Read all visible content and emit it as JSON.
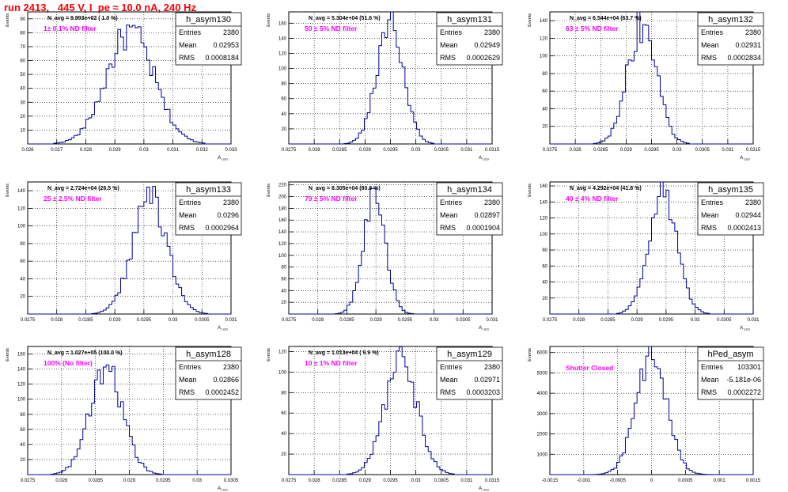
{
  "title": "run 2413,   445 V, I_pe ≈ 10.0 nA, 240 Hz",
  "colors": {
    "hist_line": "#000099",
    "annotation": "#ff00ff",
    "title": "#ff0000",
    "grid": "#000000"
  },
  "chart_data": [
    {
      "type": "bar",
      "name": "h_asym130",
      "ylabel": "Events",
      "xlabel": "A_LED",
      "navg": "N_avg = 9.993e+02 ( 1.0 %)",
      "note": "1± 0.1% ND filter",
      "stats": {
        "entries": "2380",
        "mean": "0.02953",
        "rms": "0.0008184"
      },
      "stat_labels": [
        "Entries",
        "Mean",
        "RMS"
      ],
      "xlim": [
        0.026,
        0.033
      ],
      "ylim": [
        0,
        95
      ],
      "xticks": [
        "0.026",
        "0.027",
        "0.028",
        "0.029",
        "0.03",
        "0.031",
        "0.032",
        "0.033"
      ],
      "yticks": [
        "10",
        "20",
        "30",
        "40",
        "50",
        "60",
        "70",
        "80",
        "90"
      ],
      "grid": true,
      "mean": 0.02953,
      "sigma": 0.000818,
      "peak": 80
    },
    {
      "type": "bar",
      "name": "h_asym131",
      "ylabel": "Events",
      "xlabel": "A_LED",
      "navg": "N_avg = 5.304e+04 (51.6 %)",
      "note": "50 ± 5% ND filter",
      "stats": {
        "entries": "2380",
        "mean": "0.02949",
        "rms": "0.0002629"
      },
      "stat_labels": [
        "Entries",
        "Mean",
        "RMS"
      ],
      "xlim": [
        0.0275,
        0.0315
      ],
      "ylim": [
        0,
        175
      ],
      "xticks": [
        "0.0275",
        "0.028",
        "0.0285",
        "0.029",
        "0.0295",
        "0.03",
        "0.0305",
        "0.031",
        "0.0315"
      ],
      "yticks": [
        "20",
        "40",
        "60",
        "80",
        "100",
        "120",
        "140",
        "160"
      ],
      "grid": true,
      "mean": 0.02949,
      "sigma": 0.000263,
      "peak": 158
    },
    {
      "type": "bar",
      "name": "h_asym132",
      "ylabel": "Events",
      "xlabel": "A_LED",
      "navg": "N_avg = 6.544e+04 (63.7 %)",
      "note": "63 ± 5% ND filter",
      "stats": {
        "entries": "2380",
        "mean": "0.02931",
        "rms": "0.0002834"
      },
      "stat_labels": [
        "Entries",
        "Mean",
        "RMS"
      ],
      "xlim": [
        0.0275,
        0.0315
      ],
      "ylim": [
        0,
        150
      ],
      "xticks": [
        "0.0275",
        "0.028",
        "0.0285",
        "0.029",
        "0.0295",
        "0.03",
        "0.0305",
        "0.031",
        "0.0315"
      ],
      "yticks": [
        "20",
        "40",
        "60",
        "80",
        "100",
        "120",
        "140"
      ],
      "grid": true,
      "mean": 0.02931,
      "sigma": 0.000283,
      "peak": 135
    },
    {
      "type": "bar",
      "name": "h_asym133",
      "ylabel": "Events",
      "xlabel": "A_LED",
      "navg": "N_avg = 2.724e+04 (26.5 %)",
      "note": "25 ± 2.5% ND filter",
      "stats": {
        "entries": "2380",
        "mean": "0.0296",
        "rms": "0.0002964"
      },
      "stat_labels": [
        "Entries",
        "Mean",
        "RMS"
      ],
      "xlim": [
        0.0275,
        0.031
      ],
      "ylim": [
        0,
        150
      ],
      "xticks": [
        "0.0275",
        "0.028",
        "0.0285",
        "0.029",
        "0.0295",
        "0.03",
        "0.0305",
        "0.031"
      ],
      "yticks": [
        "20",
        "40",
        "60",
        "80",
        "100",
        "120",
        "140"
      ],
      "grid": true,
      "mean": 0.0296,
      "sigma": 0.000296,
      "peak": 132
    },
    {
      "type": "bar",
      "name": "h_asym134",
      "ylabel": "Events",
      "xlabel": "A_LED",
      "navg": "N_avg = 8.305e+04 (80.8 %)",
      "note": "79 ± 5% ND filter",
      "stats": {
        "entries": "2380",
        "mean": "0.02897",
        "rms": "0.0001904"
      },
      "stat_labels": [
        "Entries",
        "Mean",
        "RMS"
      ],
      "xlim": [
        0.0275,
        0.031
      ],
      "ylim": [
        0,
        225
      ],
      "xticks": [
        "0.0275",
        "0.028",
        "0.0285",
        "0.029",
        "0.0295",
        "0.03",
        "0.0305",
        "0.031"
      ],
      "yticks": [
        "20",
        "40",
        "60",
        "80",
        "100",
        "120",
        "140",
        "160",
        "180",
        "200",
        "220"
      ],
      "grid": true,
      "mean": 0.02897,
      "sigma": 0.00019,
      "peak": 205
    },
    {
      "type": "bar",
      "name": "h_asym135",
      "ylabel": "Events",
      "xlabel": "A_LED",
      "navg": "N_avg = 4.292e+04 (41.8 %)",
      "note": "40 ± 4% ND filter",
      "stats": {
        "entries": "2380",
        "mean": "0.02944",
        "rms": "0.0002413"
      },
      "stat_labels": [
        "Entries",
        "Mean",
        "RMS"
      ],
      "xlim": [
        0.0275,
        0.031
      ],
      "ylim": [
        0,
        165
      ],
      "xticks": [
        "0.0275",
        "0.028",
        "0.0285",
        "0.029",
        "0.0295",
        "0.03",
        "0.0305",
        "0.031"
      ],
      "yticks": [
        "20",
        "40",
        "60",
        "80",
        "100",
        "120",
        "140",
        "160"
      ],
      "grid": true,
      "mean": 0.02944,
      "sigma": 0.000241,
      "peak": 150
    },
    {
      "type": "bar",
      "name": "h_asym128",
      "ylabel": "Events",
      "xlabel": "A_LED",
      "navg": "N_avg = 1.027e+05 (100.0 %)",
      "note": "100% (No filter)",
      "stats": {
        "entries": "2380",
        "mean": "0.02866",
        "rms": "0.0002452"
      },
      "stat_labels": [
        "Entries",
        "Mean",
        "RMS"
      ],
      "xlim": [
        0.0275,
        0.0305
      ],
      "ylim": [
        0,
        170
      ],
      "xticks": [
        "0.0275",
        "0.028",
        "0.0285",
        "0.029",
        "0.0295",
        "0.03",
        "0.0305"
      ],
      "yticks": [
        "20",
        "40",
        "60",
        "80",
        "100",
        "120",
        "140",
        "160"
      ],
      "grid": true,
      "mean": 0.02866,
      "sigma": 0.000245,
      "peak": 140
    },
    {
      "type": "bar",
      "name": "h_asym129",
      "ylabel": "Events",
      "xlabel": "A_LED",
      "navg": "N_avg = 1.013e+04 ( 9.9 %)",
      "note": "10 ± 1% ND filter",
      "stats": {
        "entries": "2380",
        "mean": "0.02971",
        "rms": "0.0003203"
      },
      "stat_labels": [
        "Entries",
        "Mean",
        "RMS"
      ],
      "xlim": [
        0.0275,
        0.0315
      ],
      "ylim": [
        0,
        125
      ],
      "xticks": [
        "0.0275",
        "0.028",
        "0.0285",
        "0.029",
        "0.0295",
        "0.03",
        "0.0305",
        "0.031",
        "0.0315"
      ],
      "yticks": [
        "20",
        "40",
        "60",
        "80",
        "100",
        "120"
      ],
      "grid": true,
      "mean": 0.02971,
      "sigma": 0.00032,
      "peak": 110
    },
    {
      "type": "bar",
      "name": "hPed_asym",
      "ylabel": "Events",
      "xlabel": "",
      "navg": "",
      "note": "Shutter Closed",
      "stats": {
        "entries": "103301",
        "mean": "-5.181e-06",
        "rms": "0.0002272"
      },
      "stat_labels": [
        "Entries",
        "Mean",
        "RMS"
      ],
      "xlim": [
        -0.0015,
        0.0015
      ],
      "ylim": [
        0,
        6300
      ],
      "xticks": [
        "-0.0015",
        "-0.001",
        "-0.0005",
        "0",
        "0.0005",
        "0.001",
        "0.0015"
      ],
      "yticks": [
        "1000",
        "2000",
        "3000",
        "4000",
        "5000",
        "6000"
      ],
      "grid": true,
      "mean": -5.181e-06,
      "sigma": 0.000227,
      "peak": 5700
    }
  ]
}
